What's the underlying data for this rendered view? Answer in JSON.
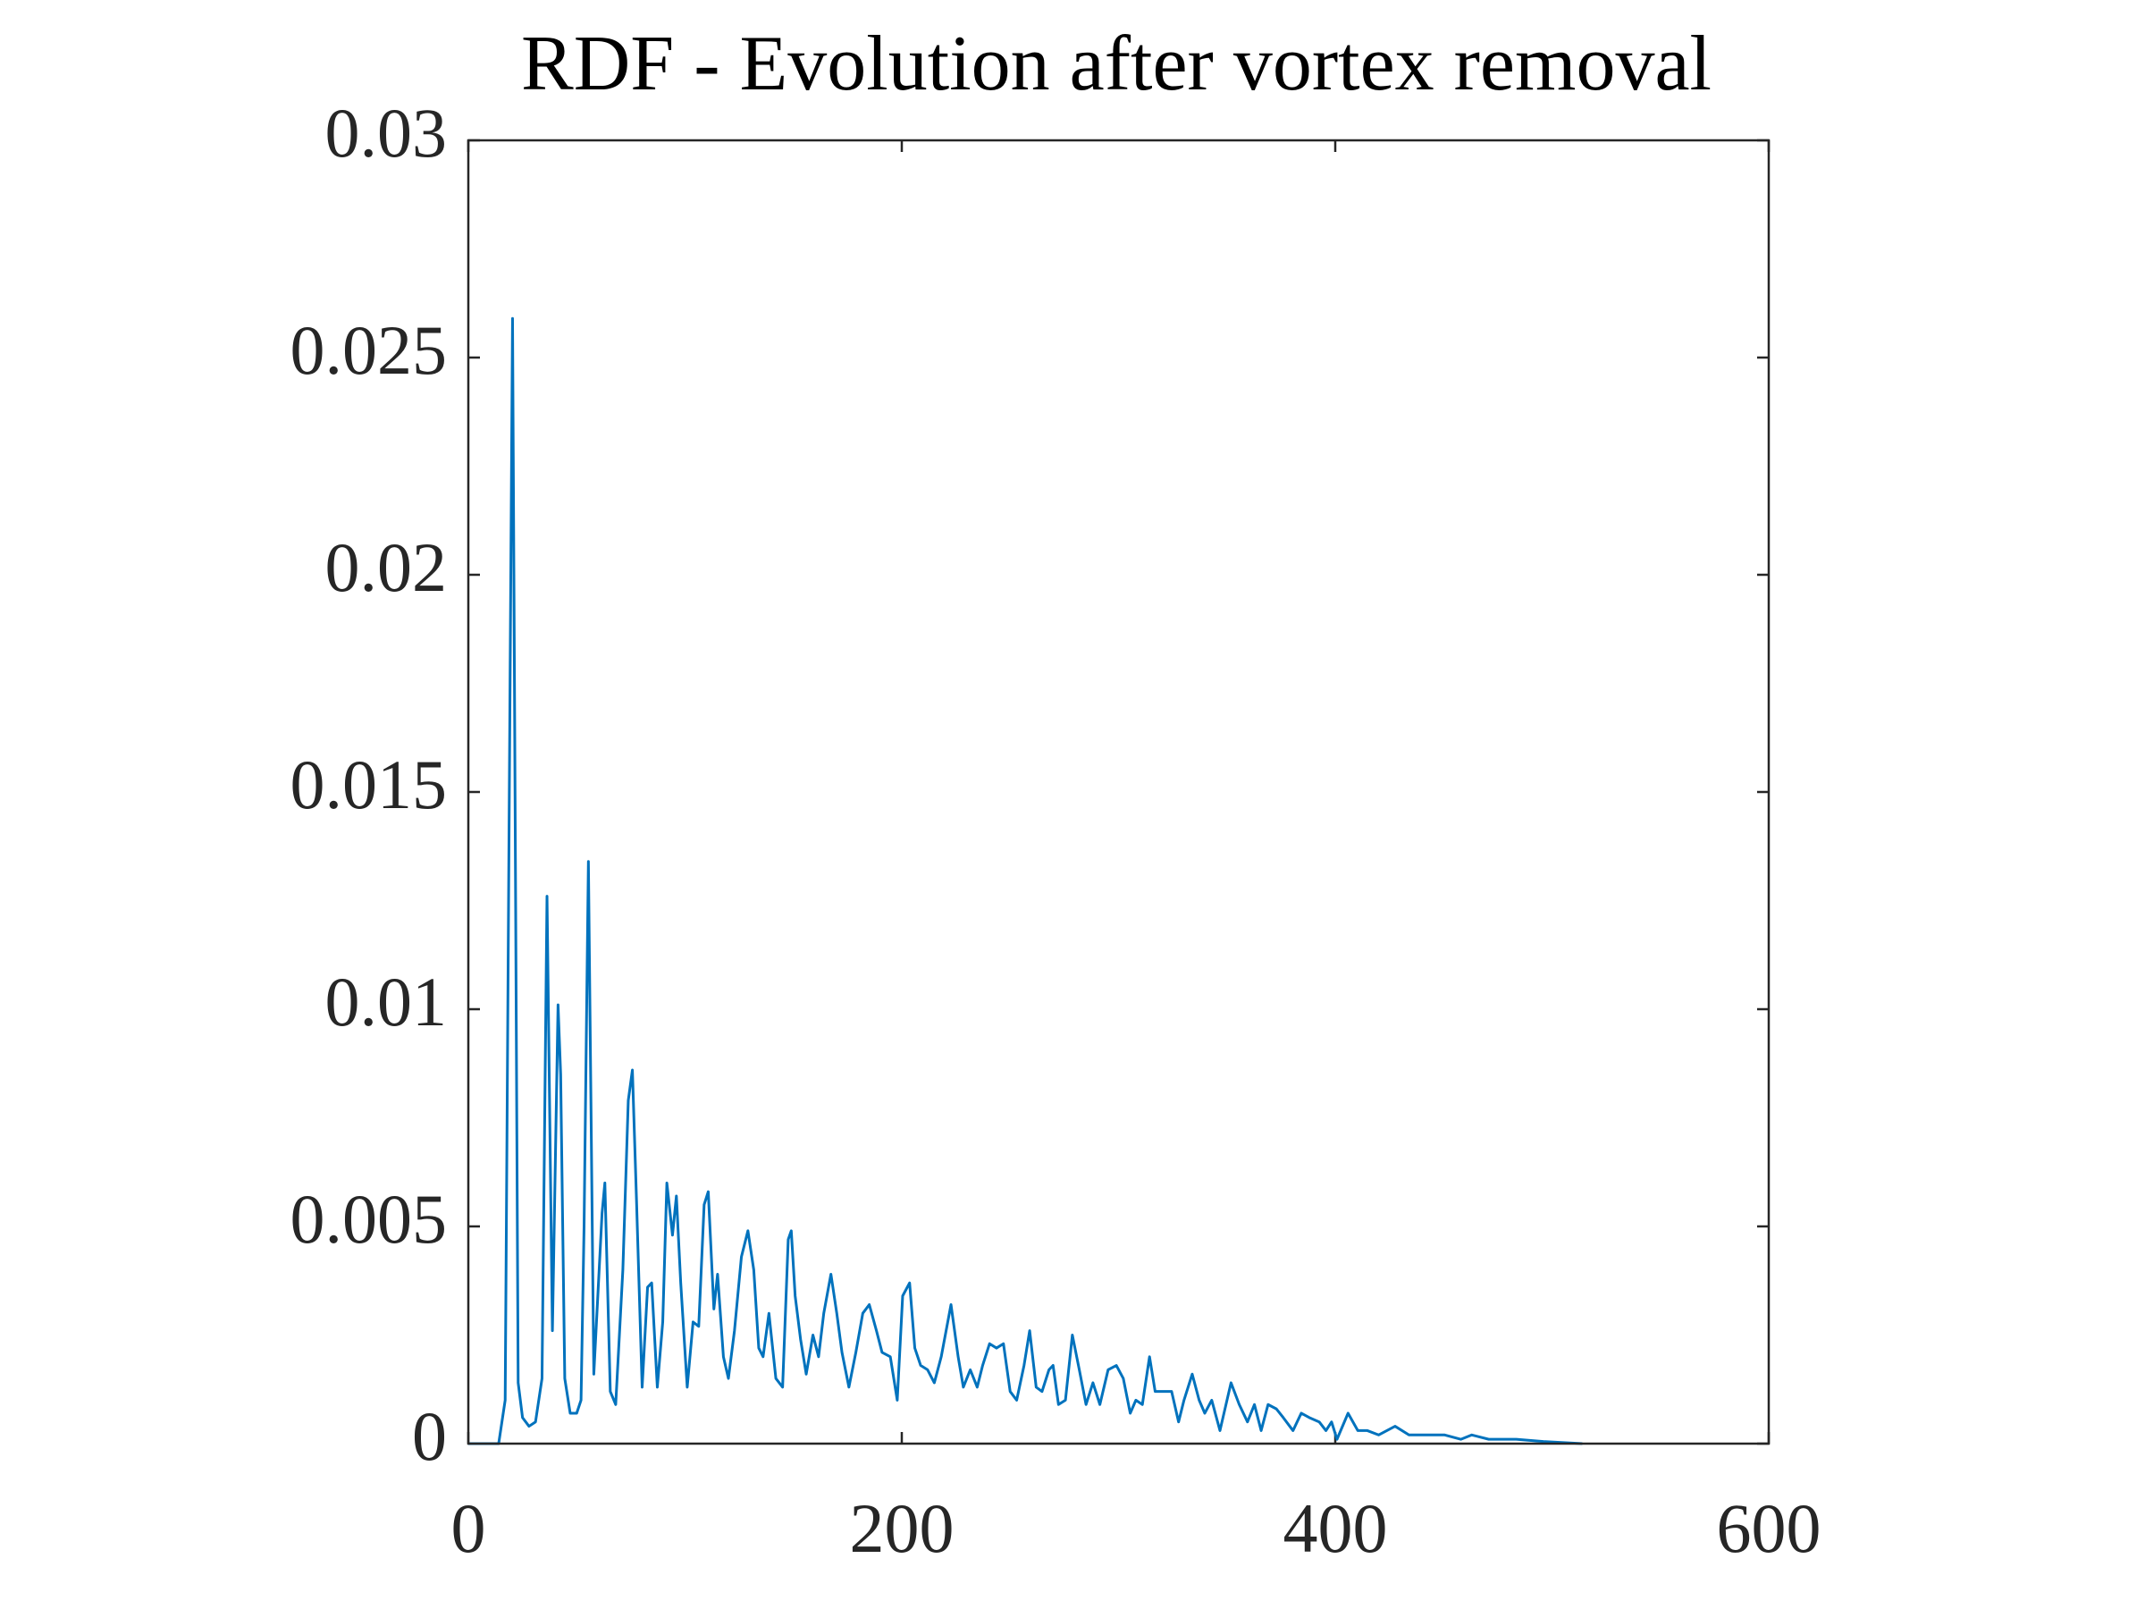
{
  "chart_data": {
    "type": "line",
    "title": "RDF - Evolution after vortex removal",
    "xlim": [
      0,
      600
    ],
    "xticks": [
      0,
      200,
      400,
      600
    ],
    "ylim": [
      0,
      0.03
    ],
    "yticks": [
      0,
      0.005,
      0.01,
      0.015,
      0.02,
      0.025,
      0.03
    ],
    "grid": false,
    "series": [
      {
        "color": "#0072bd",
        "x": [
          0,
          14,
          17,
          20.4,
          23,
          25,
          28,
          31,
          34,
          36.3,
          38.8,
          41.4,
          42.6,
          44.5,
          47,
          50,
          52,
          53.4,
          55.4,
          57.9,
          61.7,
          63,
          65.5,
          68,
          71.3,
          73.8,
          75.7,
          77.6,
          80.2,
          82.7,
          84.6,
          87.2,
          89.7,
          91.6,
          94.2,
          96,
          98,
          101,
          103.7,
          106.3,
          108.8,
          110.7,
          113.3,
          115,
          117.7,
          120,
          122.8,
          126,
          129,
          131.7,
          134,
          136,
          138.7,
          141.9,
          145,
          147.6,
          149,
          150.8,
          153.3,
          155.9,
          159,
          161.6,
          164,
          167.3,
          170,
          172.4,
          175.6,
          178.8,
          182,
          185,
          188.3,
          190.9,
          194.7,
          197.9,
          200.4,
          203.6,
          206,
          208.7,
          211.9,
          215,
          218.2,
          222.7,
          226,
          228.4,
          231.6,
          234.8,
          237.3,
          240.5,
          243.7,
          246.9,
          250,
          253,
          256.4,
          259,
          262,
          264.7,
          267.9,
          269.8,
          272.3,
          275.5,
          278.7,
          281.9,
          285,
          288.2,
          291.4,
          295.2,
          299,
          302.2,
          305.4,
          308,
          311,
          314.3,
          316.9,
          320.7,
          324.5,
          327.7,
          330.2,
          334,
          337.2,
          339.8,
          343,
          346.8,
          351.9,
          355.7,
          359.5,
          362.7,
          365.8,
          369,
          372.8,
          376,
          380.5,
          384.3,
          388,
          392.6,
          395.7,
          398.3,
          400.8,
          405.9,
          410.4,
          414.8,
          420,
          427.6,
          434,
          442,
          450.5,
          458,
          463,
          470.8,
          483.5,
          496,
          514
        ],
        "values": [
          0,
          0,
          0.001,
          0.0259,
          0.0014,
          0.0006,
          0.0004,
          0.0005,
          0.0015,
          0.0126,
          0.0026,
          0.0101,
          0.0085,
          0.0015,
          0.0007,
          0.0007,
          0.001,
          0.005,
          0.0134,
          0.0016,
          0.0053,
          0.006,
          0.0012,
          0.0009,
          0.004,
          0.0079,
          0.0086,
          0.0056,
          0.0013,
          0.0036,
          0.0037,
          0.0013,
          0.0028,
          0.006,
          0.0048,
          0.0057,
          0.0037,
          0.0013,
          0.0028,
          0.0027,
          0.0055,
          0.0058,
          0.0031,
          0.0039,
          0.002,
          0.0015,
          0.0026,
          0.0043,
          0.0049,
          0.004,
          0.0022,
          0.002,
          0.003,
          0.0015,
          0.0013,
          0.0047,
          0.0049,
          0.0034,
          0.0024,
          0.0016,
          0.0025,
          0.002,
          0.003,
          0.0039,
          0.003,
          0.0021,
          0.0013,
          0.0021,
          0.003,
          0.0032,
          0.0026,
          0.0021,
          0.002,
          0.001,
          0.0034,
          0.0037,
          0.0022,
          0.0018,
          0.0017,
          0.0014,
          0.002,
          0.0032,
          0.002,
          0.0013,
          0.0017,
          0.0013,
          0.0018,
          0.0023,
          0.0022,
          0.0023,
          0.0012,
          0.001,
          0.0018,
          0.0026,
          0.0013,
          0.0012,
          0.0017,
          0.0018,
          0.0009,
          0.001,
          0.0025,
          0.0017,
          0.0009,
          0.0014,
          0.0009,
          0.0017,
          0.0018,
          0.0015,
          0.0007,
          0.001,
          0.0009,
          0.002,
          0.0012,
          0.0012,
          0.0012,
          0.0005,
          0.001,
          0.0016,
          0.001,
          0.0007,
          0.001,
          0.0003,
          0.0014,
          0.0009,
          0.0005,
          0.0009,
          0.0003,
          0.0009,
          0.0008,
          0.0006,
          0.0003,
          0.0007,
          0.0006,
          0.0005,
          0.0003,
          0.0005,
          0.0001,
          0.0007,
          0.0003,
          0.0003,
          0.0002,
          0.0004,
          0.0002,
          0.0002,
          0.0002,
          0.0001,
          0.0002,
          0.0001,
          0.0001,
          5e-05,
          0
        ]
      }
    ]
  }
}
